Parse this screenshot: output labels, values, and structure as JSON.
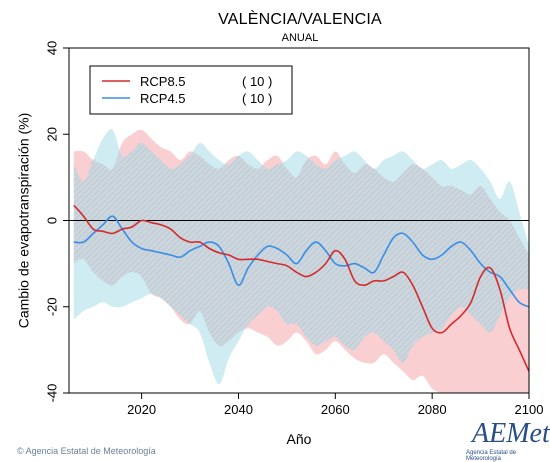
{
  "header": {
    "title": "VALÈNCIA/VALENCIA",
    "subtitle": "ANUAL"
  },
  "footer": {
    "credit": "Agencia Estatal de Meteorología",
    "logo_text": "AEMet",
    "logo_sub": "Agencia Estatal de Meteorología"
  },
  "chart_data": {
    "type": "line",
    "xlabel": "Año",
    "ylabel": "Cambio de evapotranspiración (%)",
    "xlim": [
      2005,
      2100
    ],
    "ylim": [
      -40,
      40
    ],
    "xticks": [
      2020,
      2040,
      2060,
      2080,
      2100
    ],
    "yticks": [
      -40,
      -20,
      0,
      20,
      40
    ],
    "reference_line": 0,
    "legend_position": "top-left",
    "x": [
      2006,
      2008,
      2010,
      2012,
      2014,
      2016,
      2018,
      2020,
      2022,
      2024,
      2026,
      2028,
      2030,
      2032,
      2034,
      2036,
      2038,
      2040,
      2042,
      2044,
      2046,
      2048,
      2050,
      2052,
      2054,
      2056,
      2058,
      2060,
      2062,
      2064,
      2066,
      2068,
      2070,
      2072,
      2074,
      2076,
      2078,
      2080,
      2082,
      2084,
      2086,
      2088,
      2090,
      2092,
      2094,
      2096,
      2098,
      2100
    ],
    "series": [
      {
        "name": "RCP8.5",
        "count_label": "( 10 )",
        "color": "#d42a2a",
        "band_color": "#f4a7ad",
        "values": [
          3.5,
          1,
          -2,
          -2.5,
          -3,
          -2,
          -1.5,
          0,
          -0.5,
          -1,
          -2,
          -4,
          -5,
          -5,
          -6.5,
          -7.5,
          -8,
          -9,
          -9,
          -9,
          -9.5,
          -10,
          -10.5,
          -12,
          -13,
          -12,
          -10,
          -7,
          -9,
          -14,
          -15,
          -14,
          -14,
          -13,
          -12,
          -15,
          -20,
          -25,
          -26,
          -24,
          -22,
          -19,
          -13,
          -11,
          -16,
          -25,
          -30,
          -35
        ],
        "upper": [
          16,
          16,
          14,
          13,
          12,
          18,
          20,
          21,
          19,
          17,
          16,
          14,
          16,
          15,
          13,
          12,
          14,
          15,
          13,
          12,
          14,
          15,
          12,
          10,
          14,
          15,
          13,
          16,
          13,
          11,
          13,
          12,
          10,
          9,
          11,
          13,
          12,
          10,
          8,
          8,
          7,
          6,
          8,
          5,
          2,
          0,
          -4,
          -8
        ],
        "lower": [
          -10,
          -9,
          -12,
          -14,
          -15,
          -13,
          -12,
          -13,
          -17,
          -18,
          -20,
          -23,
          -24,
          -21,
          -26,
          -29,
          -28,
          -26,
          -25,
          -26,
          -27,
          -29,
          -28,
          -26,
          -28,
          -31,
          -30,
          -28,
          -30,
          -32,
          -33,
          -33,
          -31,
          -33,
          -35,
          -37,
          -36,
          -39,
          -40,
          -41,
          -42,
          -41,
          -40,
          -44,
          -48,
          -50,
          -50,
          -48
        ]
      },
      {
        "name": "RCP4.5",
        "count_label": "( 10 )",
        "color": "#3a8ee6",
        "band_color": "#a6dce8",
        "values": [
          -5,
          -5,
          -3,
          -1,
          1,
          -2,
          -5,
          -6.5,
          -7,
          -7.5,
          -8,
          -8.5,
          -7,
          -6,
          -5,
          -6,
          -10,
          -15,
          -11,
          -8,
          -6,
          -6.5,
          -8,
          -10,
          -7,
          -5,
          -7,
          -10,
          -10.5,
          -10,
          -11,
          -12,
          -8,
          -4,
          -3,
          -5,
          -8,
          -9,
          -8,
          -6,
          -5,
          -7,
          -10,
          -12,
          -13,
          -16,
          -19,
          -20
        ],
        "upper": [
          13,
          9,
          14,
          19,
          21,
          15,
          16,
          18,
          16,
          14,
          12,
          13,
          15,
          18,
          16,
          14,
          13,
          15,
          16,
          14,
          12,
          13,
          14,
          16,
          15,
          13,
          12,
          14,
          15,
          16,
          14,
          12,
          14,
          15,
          16,
          14,
          12,
          13,
          14,
          12,
          13,
          14,
          12,
          9,
          5,
          9,
          2,
          -6
        ],
        "lower": [
          -23,
          -21,
          -20,
          -19,
          -20,
          -20,
          -19,
          -18,
          -17,
          -18,
          -20,
          -22,
          -24,
          -26,
          -33,
          -38,
          -32,
          -28,
          -24,
          -22,
          -20,
          -21,
          -24,
          -24,
          -27,
          -29,
          -28,
          -27,
          -29,
          -30,
          -27,
          -26,
          -28,
          -30,
          -33,
          -29,
          -27,
          -26,
          -25,
          -22,
          -20,
          -22,
          -24,
          -26,
          -22,
          -18,
          -16,
          -16
        ]
      }
    ]
  }
}
